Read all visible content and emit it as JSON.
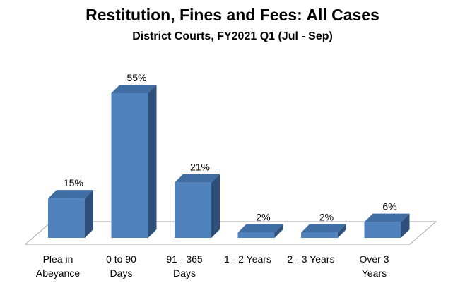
{
  "chart_data": {
    "type": "bar",
    "title": "Restitution, Fines and Fees: All Cases",
    "subtitle": "District Courts, FY2021 Q1 (Jul - Sep)",
    "categories": [
      [
        "Plea in",
        "Abeyance"
      ],
      [
        "0 to 90",
        "Days"
      ],
      [
        "91 - 365",
        "Days"
      ],
      [
        "1 - 2 Years"
      ],
      [
        "2 - 3 Years"
      ],
      [
        "Over 3",
        "Years"
      ]
    ],
    "values": [
      15,
      55,
      21,
      2,
      2,
      6
    ],
    "value_labels": [
      "15%",
      "55%",
      "21%",
      "2%",
      "2%",
      "6%"
    ],
    "unit": "%",
    "ylim": [
      0,
      60
    ],
    "grid": false,
    "legend": "none",
    "colors": {
      "bar_front": "#4F81BD",
      "bar_side": "#2E4F7A",
      "bar_top": "#3F6DA4",
      "floor": "#FFFFFF",
      "floor_edge": "#A6A6A6"
    }
  }
}
